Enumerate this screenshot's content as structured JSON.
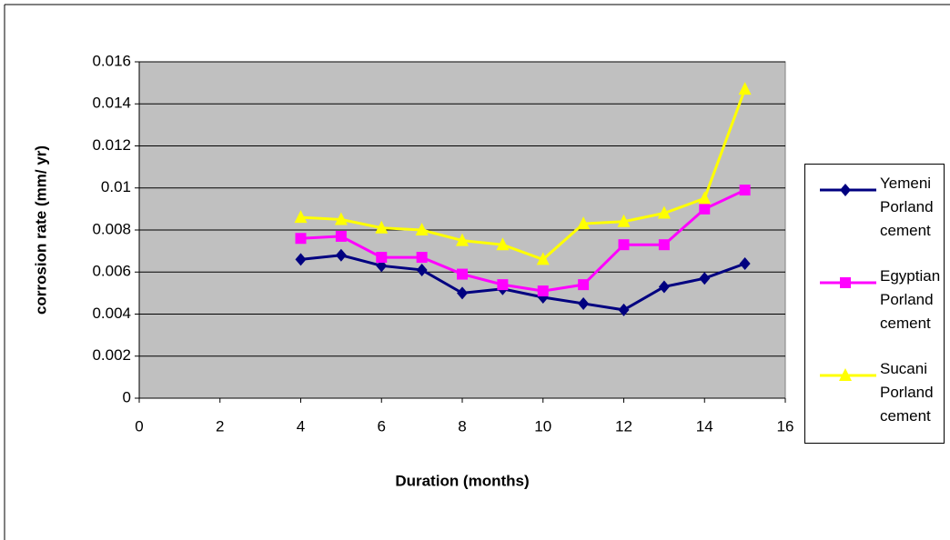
{
  "chart_data": {
    "type": "line",
    "x_label": "Duration (months)",
    "y_label": "corrosion rate  (mm/ yr)",
    "x": [
      4,
      5,
      6,
      7,
      8,
      9,
      10,
      11,
      12,
      13,
      14,
      15
    ],
    "series": [
      {
        "name": "Yemeni Porland cement",
        "color": "#000080",
        "marker": "diamond",
        "values": [
          0.0066,
          0.0068,
          0.0063,
          0.0061,
          0.005,
          0.0052,
          0.0048,
          0.0045,
          0.0042,
          0.0053,
          0.0057,
          0.0064
        ]
      },
      {
        "name": "Egyptian Porland cement",
        "color": "#ff00ff",
        "marker": "square",
        "values": [
          0.0076,
          0.0077,
          0.0067,
          0.0067,
          0.0059,
          0.0054,
          0.0051,
          0.0054,
          0.0073,
          0.0073,
          0.009,
          0.0099
        ]
      },
      {
        "name": "Sucani Porland cement",
        "color": "#ffff00",
        "marker": "triangle",
        "values": [
          0.0086,
          0.0085,
          0.0081,
          0.008,
          0.0075,
          0.0073,
          0.0066,
          0.0083,
          0.0084,
          0.0088,
          0.0095,
          0.0147
        ]
      }
    ],
    "xlim": [
      0,
      16
    ],
    "xticks": [
      0,
      2,
      4,
      6,
      8,
      10,
      12,
      14,
      16
    ],
    "ylim": [
      0,
      0.016
    ],
    "yticks": [
      0,
      0.002,
      0.004,
      0.006,
      0.008,
      0.01,
      0.012,
      0.014,
      0.016
    ],
    "grid": true,
    "legend": "right",
    "plot_background": "#c0c0c0"
  }
}
